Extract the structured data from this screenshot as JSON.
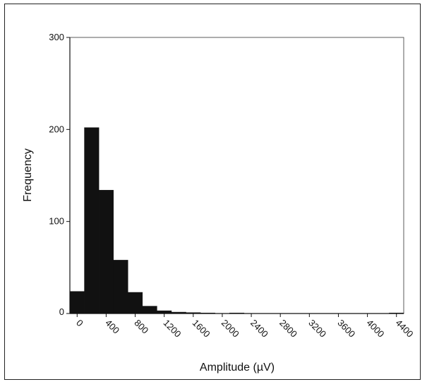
{
  "chart_data": {
    "type": "bar",
    "title": "",
    "xlabel": "Amplitude (µV)",
    "ylabel": "Frequency",
    "ylim": [
      0,
      300
    ],
    "xlim": [
      -100,
      4500
    ],
    "bin_width": 200,
    "bins": [
      {
        "x_start": -100,
        "x_end": 100,
        "value": 24
      },
      {
        "x_start": 100,
        "x_end": 300,
        "value": 202
      },
      {
        "x_start": 300,
        "x_end": 500,
        "value": 134
      },
      {
        "x_start": 500,
        "x_end": 700,
        "value": 58
      },
      {
        "x_start": 700,
        "x_end": 900,
        "value": 23
      },
      {
        "x_start": 900,
        "x_end": 1100,
        "value": 8
      },
      {
        "x_start": 1100,
        "x_end": 1300,
        "value": 3
      },
      {
        "x_start": 1300,
        "x_end": 1500,
        "value": 1.5
      },
      {
        "x_start": 1500,
        "x_end": 1700,
        "value": 1
      },
      {
        "x_start": 1700,
        "x_end": 1900,
        "value": 0.5
      },
      {
        "x_start": 2100,
        "x_end": 2300,
        "value": 0.5
      },
      {
        "x_start": 4300,
        "x_end": 4500,
        "value": 0.5
      }
    ],
    "y_ticks": [
      0,
      100,
      200,
      300
    ],
    "x_ticks": [
      0,
      400,
      800,
      1200,
      1600,
      2000,
      2400,
      2800,
      3200,
      3600,
      4000,
      4400
    ],
    "legend": "none",
    "grid": false,
    "bar_color": "#111111"
  }
}
